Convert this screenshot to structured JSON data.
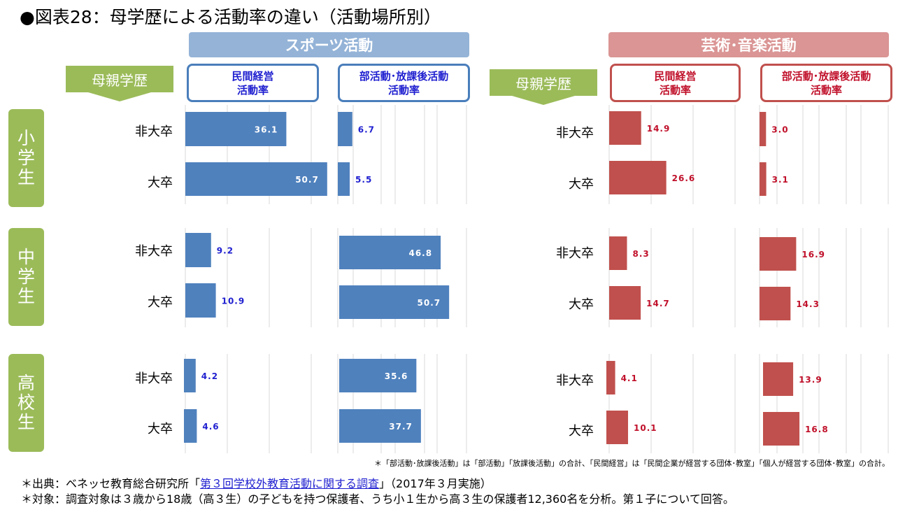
{
  "title": "●図表28：母学歴による活動率の違い（活動場所別）",
  "sections": {
    "sports": "スポーツ活動",
    "arts": "芸術･音楽活動"
  },
  "column_headers": {
    "private_line1": "民間経営",
    "private_line2": "活動率",
    "club_line1": "部活動･放課後活動",
    "club_line2": "活動率"
  },
  "mother_edu_label": "母親学歴",
  "school_levels": [
    "小学生",
    "中学生",
    "高校生"
  ],
  "row_labels": [
    "非大卒",
    "大卒"
  ],
  "colors": {
    "sports": "#4f81bd",
    "arts": "#c0504d",
    "sports_label": "#1f1fd0",
    "arts_label": "#c0102a"
  },
  "chart_data": [
    {
      "type": "bar",
      "orientation": "horizontal",
      "title": "スポーツ活動 民間経営活動率",
      "categories": [
        "小学生 非大卒",
        "小学生 大卒",
        "中学生 非大卒",
        "中学生 大卒",
        "高校生 非大卒",
        "高校生 大卒"
      ],
      "values": [
        36.1,
        50.7,
        9.2,
        10.9,
        4.2,
        4.6
      ],
      "xlim": [
        0,
        60
      ]
    },
    {
      "type": "bar",
      "orientation": "horizontal",
      "title": "スポーツ活動 部活動･放課後活動活動率",
      "categories": [
        "小学生 非大卒",
        "小学生 大卒",
        "中学生 非大卒",
        "中学生 大卒",
        "高校生 非大卒",
        "高校生 大卒"
      ],
      "values": [
        6.7,
        5.5,
        46.8,
        50.7,
        35.6,
        37.7
      ],
      "xlim": [
        0,
        60
      ]
    },
    {
      "type": "bar",
      "orientation": "horizontal",
      "title": "芸術･音楽活動 民間経営活動率",
      "categories": [
        "小学生 非大卒",
        "小学生 大卒",
        "中学生 非大卒",
        "中学生 大卒",
        "高校生 非大卒",
        "高校生 大卒"
      ],
      "values": [
        14.9,
        26.6,
        8.3,
        14.7,
        4.1,
        10.1
      ],
      "xlim": [
        0,
        40
      ]
    },
    {
      "type": "bar",
      "orientation": "horizontal",
      "title": "芸術･音楽活動 部活動･放課後活動活動率",
      "categories": [
        "小学生 非大卒",
        "小学生 大卒",
        "中学生 非大卒",
        "中学生 大卒",
        "高校生 非大卒",
        "高校生 大卒"
      ],
      "values": [
        3.0,
        3.1,
        16.9,
        14.3,
        13.9,
        16.8
      ],
      "xlim": [
        0,
        40
      ]
    }
  ],
  "footnote_small": "＊「部活動･放課後活動」は「部活動」｢放課後活動」の合計、「民間経営」は「民間企業が経営する団体･教室」「個人が経営する団体･教室」の合計。",
  "source": {
    "prefix": "＊出典：ベネッセ教育総合研究所「",
    "link_text": "第３回学校外教育活動に関する調査",
    "suffix": "」（2017年３月実施）"
  },
  "target_note": "＊対象：調査対象は３歳から18歳（高３生）の子どもを持つ保護者、うち小１生から高３生の保護者12,360名を分析。第１子について回答。"
}
